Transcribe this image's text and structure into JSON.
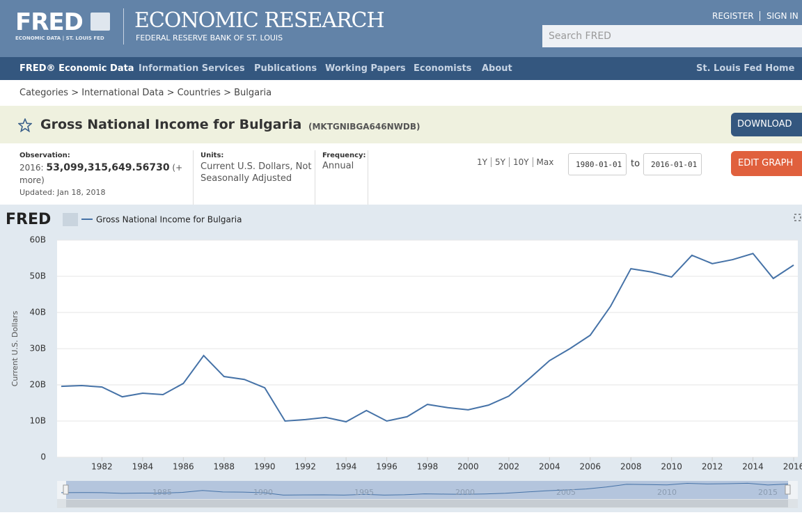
{
  "header": {
    "logo": "FRED",
    "logo_sub": "ECONOMIC DATA | ST. LOUIS FED",
    "brand": "ECONOMIC RESEARCH",
    "brand_sub": "FEDERAL RESERVE BANK OF ST. LOUIS",
    "register": "REGISTER",
    "sign_in": "SIGN IN",
    "search_placeholder": "Search FRED"
  },
  "nav": {
    "items": [
      "FRED® Economic Data",
      "Information Services",
      "Publications",
      "Working Papers",
      "Economists",
      "About"
    ],
    "home": "St. Louis Fed Home"
  },
  "breadcrumb": {
    "items": [
      "Categories",
      "International Data",
      "Countries",
      "Bulgaria"
    ],
    "separator": ">"
  },
  "series": {
    "title": "Gross National Income for Bulgaria",
    "id": "(MKTGNIBGA646NWDB)",
    "download": "DOWNLOAD",
    "edit_graph": "EDIT GRAPH"
  },
  "meta": {
    "observation_label": "Observation:",
    "observation_date": "2016:",
    "observation_value": "53,099,315,649.56730",
    "more": "(+ more)",
    "updated": "Updated: Jan 18, 2018",
    "units_label": "Units:",
    "units": "Current U.S. Dollars, Not Seasonally Adjusted",
    "frequency_label": "Frequency:",
    "frequency": "Annual",
    "ranges": [
      "1Y",
      "5Y",
      "10Y",
      "Max"
    ],
    "date_from": "1980-01-01",
    "to": "to",
    "date_to": "2016-01-01"
  },
  "chart_data": {
    "type": "line",
    "logo": "FRED",
    "y_label": "Current U.S. Dollars",
    "x": [
      1980,
      1981,
      1982,
      1983,
      1984,
      1985,
      1986,
      1987,
      1988,
      1989,
      1990,
      1991,
      1992,
      1993,
      1994,
      1995,
      1996,
      1997,
      1998,
      1999,
      2000,
      2001,
      2002,
      2003,
      2004,
      2005,
      2006,
      2007,
      2008,
      2009,
      2010,
      2011,
      2012,
      2013,
      2014,
      2015,
      2016
    ],
    "series": [
      {
        "name": "Gross National Income for Bulgaria",
        "color": "#4572a7",
        "values": [
          19.6,
          19.8,
          19.4,
          16.7,
          17.7,
          17.3,
          20.4,
          28.1,
          22.3,
          21.5,
          19.2,
          10.0,
          10.4,
          11.0,
          9.8,
          12.9,
          10.0,
          11.2,
          14.6,
          13.7,
          13.1,
          14.4,
          16.9,
          21.7,
          26.7,
          30.0,
          33.7,
          41.7,
          52.1,
          51.2,
          49.8,
          55.8,
          53.5,
          54.6,
          56.3,
          49.4,
          53.1
        ]
      }
    ],
    "xlim": [
      1980,
      2016
    ],
    "xticks": [
      1982,
      1984,
      1986,
      1988,
      1990,
      1992,
      1994,
      1996,
      1998,
      2000,
      2002,
      2004,
      2006,
      2008,
      2010,
      2012,
      2014,
      2016
    ],
    "ylim": [
      0,
      60
    ],
    "yticks": [
      0,
      {
        "value": 10,
        "label": "10B"
      },
      {
        "value": 20,
        "label": "20B"
      },
      {
        "value": 30,
        "label": "30B"
      },
      {
        "value": 40,
        "label": "40B"
      },
      {
        "value": 50,
        "label": "50B"
      },
      {
        "value": 60,
        "label": "60B"
      }
    ],
    "grid": true,
    "navigator_xticks": [
      1985,
      1990,
      1995,
      2000,
      2005,
      2010,
      2015
    ]
  }
}
